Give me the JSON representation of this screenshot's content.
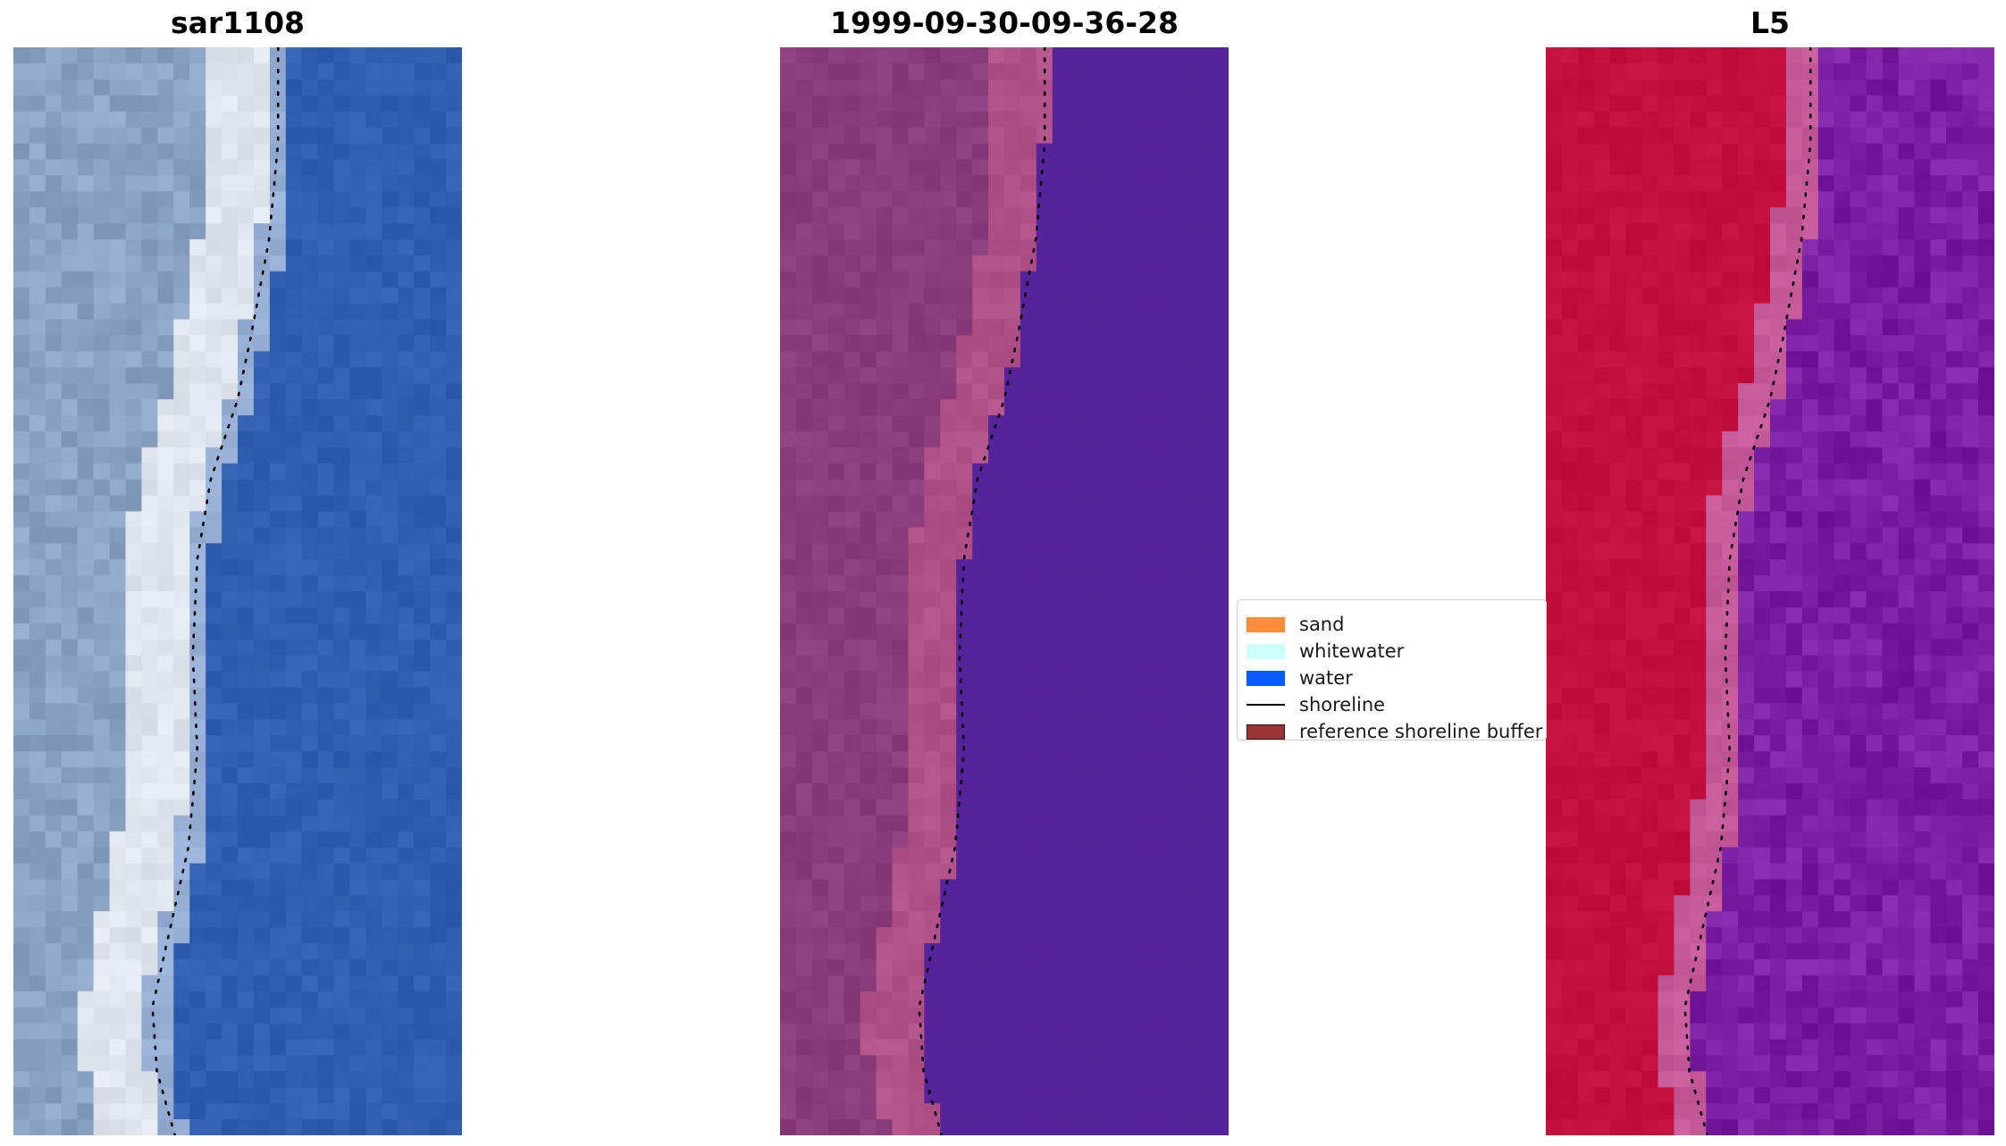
{
  "panels": [
    {
      "title": "sar1108",
      "type": "rgb",
      "colors": {
        "land": "#8aa3c2",
        "bright": "#eef0f4",
        "water": "#2f5fae"
      }
    },
    {
      "title": "1999-09-30-09-36-28",
      "type": "classified",
      "colors": {
        "land": "#8a3d7a",
        "sand": "#c25a8f",
        "water": "#55239a"
      }
    },
    {
      "title": "L5",
      "type": "index",
      "colors": {
        "land": "#c40f3c",
        "transition": "#c45a9a",
        "water": "#7a1fa0"
      }
    }
  ],
  "legend": {
    "items": [
      {
        "label": "sand",
        "kind": "patch",
        "color": "#ff8c3a"
      },
      {
        "label": "whitewater",
        "kind": "patch",
        "color": "#ccffff"
      },
      {
        "label": "water",
        "kind": "patch",
        "color": "#0a5cff"
      },
      {
        "label": "shoreline",
        "kind": "line",
        "color": "#000000"
      },
      {
        "label": "reference shoreline buffer",
        "kind": "patch",
        "color": "#9a3333",
        "edge": "#3a1010"
      }
    ]
  }
}
